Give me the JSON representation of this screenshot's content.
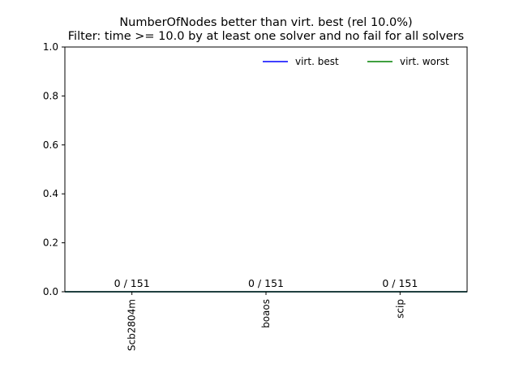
{
  "chart_data": {
    "type": "bar",
    "title_lines": [
      "NumberOfNodes better than virt. best (rel 10.0%)",
      "Filter: time >= 10.0 by at least one solver and no fail for all solvers"
    ],
    "categories": [
      "Scb2804m",
      "boaos",
      "scip"
    ],
    "values": [
      0,
      0,
      0
    ],
    "bar_labels": [
      "0 / 151",
      "0 / 151",
      "0 / 151"
    ],
    "ylim": [
      0,
      1.0
    ],
    "yticks": [
      0.0,
      0.2,
      0.4,
      0.6,
      0.8,
      1.0
    ],
    "ytick_labels": [
      "0.0",
      "0.2",
      "0.4",
      "0.6",
      "0.8",
      "1.0"
    ],
    "reference_lines": [
      {
        "name": "virt. best",
        "value": 0,
        "color": "#0000ff"
      },
      {
        "name": "virt. worst",
        "value": 0,
        "color": "#008000"
      }
    ],
    "legend_placement": "upper-right",
    "grid": false
  }
}
